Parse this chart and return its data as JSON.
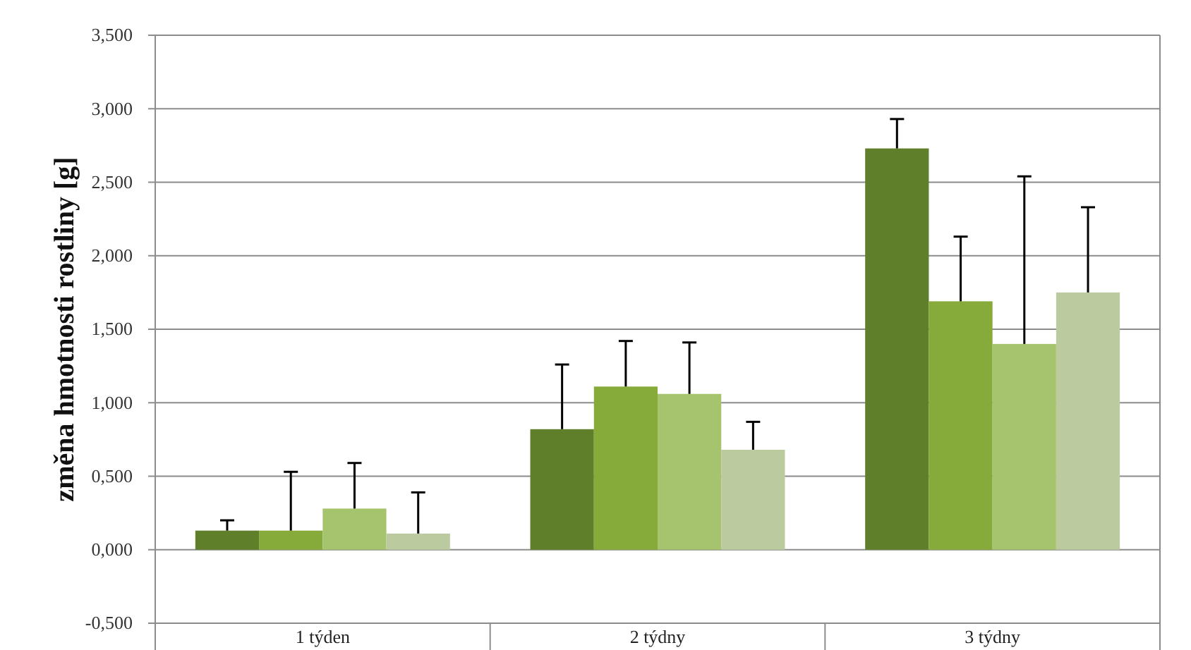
{
  "chart_data": {
    "type": "bar",
    "ylabel": "změna hmotnosti rostliny [g]",
    "categories": [
      "1 týden",
      "2 týdny",
      "3 týdny"
    ],
    "series": [
      {
        "color": "#5f7f2a",
        "values": [
          0.13,
          0.82,
          2.73
        ],
        "errors": [
          [
            0.13,
            0.2
          ],
          [
            0.82,
            1.26
          ],
          [
            2.73,
            2.93
          ]
        ]
      },
      {
        "color": "#86ab3a",
        "values": [
          0.13,
          1.11,
          1.69
        ],
        "errors": [
          [
            0.13,
            0.53
          ],
          [
            1.11,
            1.42
          ],
          [
            1.69,
            2.13
          ]
        ]
      },
      {
        "color": "#a6c46d",
        "values": [
          0.28,
          1.06,
          1.4
        ],
        "errors": [
          [
            0.28,
            0.59
          ],
          [
            1.06,
            1.41
          ],
          [
            1.4,
            2.54
          ]
        ]
      },
      {
        "color": "#bccaa0",
        "values": [
          0.11,
          0.68,
          1.75
        ],
        "errors": [
          [
            0.11,
            0.39
          ],
          [
            0.68,
            0.87
          ],
          [
            1.75,
            2.33
          ]
        ]
      }
    ],
    "ylim": [
      -0.5,
      3.5
    ],
    "yticks": [
      {
        "value": -0.5,
        "label": "-0,500"
      },
      {
        "value": 0,
        "label": "0,000"
      },
      {
        "value": 0.5,
        "label": "0,500"
      },
      {
        "value": 1,
        "label": "1,000"
      },
      {
        "value": 1.5,
        "label": "1,500"
      },
      {
        "value": 2,
        "label": "2,000"
      },
      {
        "value": 2.5,
        "label": "2,500"
      },
      {
        "value": 3,
        "label": "3,000"
      },
      {
        "value": 3.5,
        "label": "3,500"
      }
    ],
    "grid": "y"
  }
}
